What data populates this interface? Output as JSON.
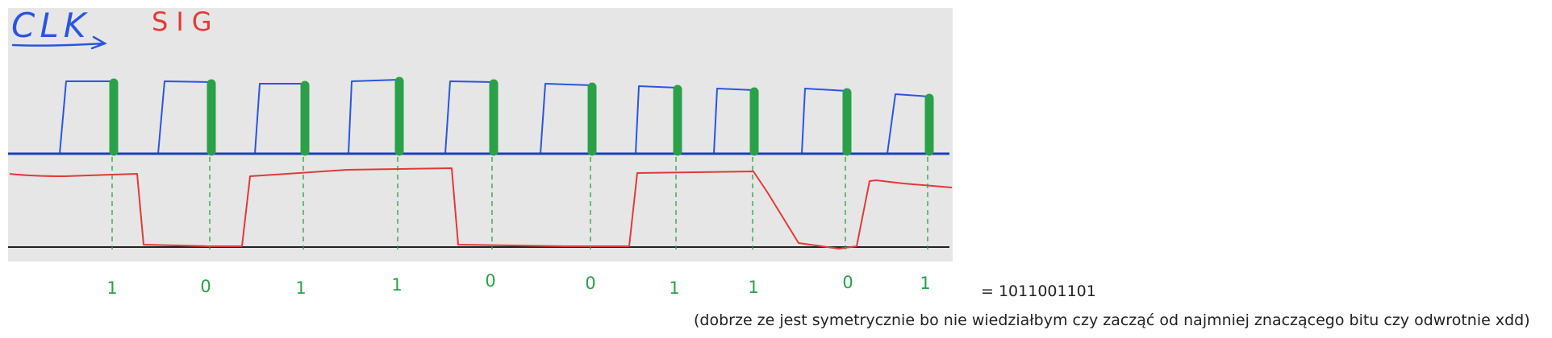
{
  "labels": {
    "clk": "CLK",
    "sig": "SIG"
  },
  "colors": {
    "panel": "#e6e6e6",
    "clk": "#2b55e0",
    "sig": "#e03a3a",
    "edge": "#2aa148",
    "axis": "#222222",
    "text": "#222222"
  },
  "bits": [
    "1",
    "0",
    "1",
    "1",
    "0",
    "0",
    "1",
    "1",
    "0",
    "1"
  ],
  "result": "= 1011001101",
  "note": "(dobrze ze jest symetrycznie bo nie wiedziałbym czy zacząć od najmniej znaczącego bitu czy odwrotnie xdd)"
}
